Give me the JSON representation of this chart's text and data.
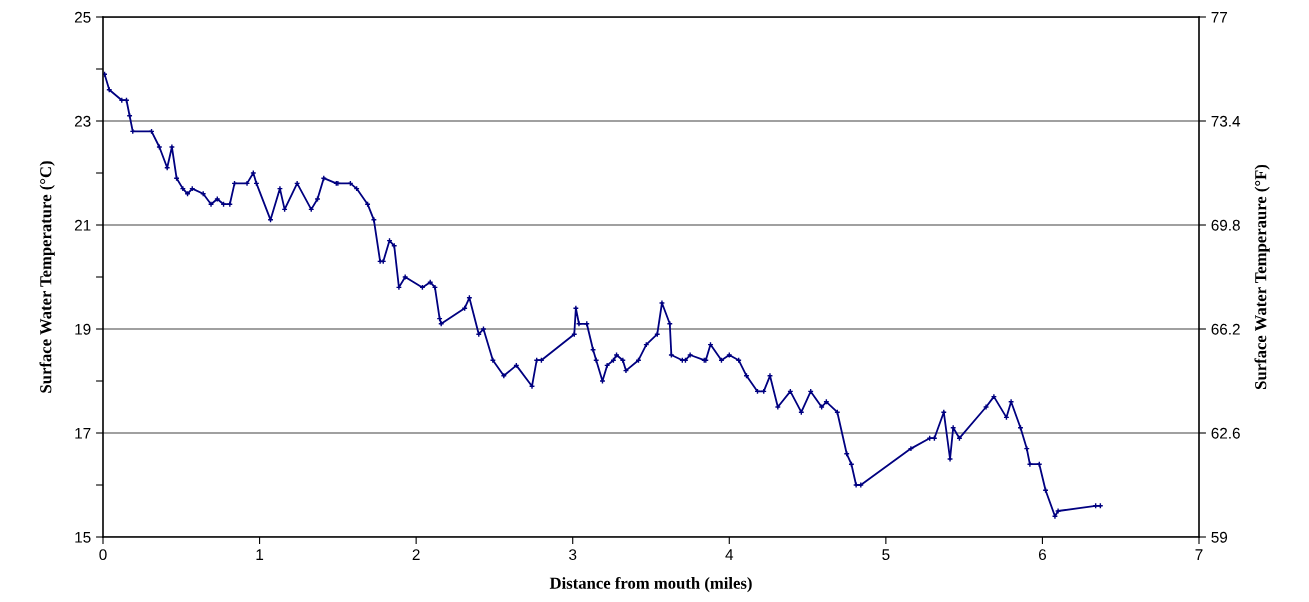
{
  "chart_data": {
    "type": "line",
    "xlabel": "Distance from mouth (miles)",
    "ylabel": "Surface Water Temperature (°C)",
    "y2label": "Surface Water Temperaure (°F)",
    "x": [
      0.01,
      0.04,
      0.12,
      0.15,
      0.17,
      0.19,
      0.31,
      0.36,
      0.41,
      0.44,
      0.47,
      0.51,
      0.54,
      0.57,
      0.64,
      0.69,
      0.73,
      0.77,
      0.81,
      0.84,
      0.92,
      0.96,
      0.98,
      1.07,
      1.13,
      1.16,
      1.24,
      1.33,
      1.37,
      1.41,
      1.49,
      1.5,
      1.58,
      1.62,
      1.69,
      1.73,
      1.77,
      1.79,
      1.83,
      1.86,
      1.89,
      1.93,
      2.04,
      2.09,
      2.12,
      2.15,
      2.16,
      2.31,
      2.34,
      2.4,
      2.43,
      2.49,
      2.56,
      2.64,
      2.74,
      2.77,
      2.8,
      3.01,
      3.02,
      3.04,
      3.09,
      3.13,
      3.15,
      3.19,
      3.22,
      3.26,
      3.28,
      3.32,
      3.34,
      3.42,
      3.47,
      3.54,
      3.57,
      3.62,
      3.63,
      3.7,
      3.72,
      3.75,
      3.84,
      3.85,
      3.88,
      3.95,
      4.0,
      4.06,
      4.11,
      4.18,
      4.22,
      4.26,
      4.31,
      4.39,
      4.46,
      4.52,
      4.59,
      4.62,
      4.69,
      4.75,
      4.78,
      4.81,
      4.84,
      5.16,
      5.28,
      5.31,
      5.37,
      5.41,
      5.43,
      5.47,
      5.64,
      5.69,
      5.77,
      5.8,
      5.86,
      5.9,
      5.92,
      5.98,
      6.02,
      6.08,
      6.1,
      6.34,
      6.37
    ],
    "series": [
      {
        "color": "#000080",
        "values": [
          23.9,
          23.6,
          23.4,
          23.4,
          23.1,
          22.8,
          22.8,
          22.5,
          22.1,
          22.5,
          21.9,
          21.7,
          21.6,
          21.7,
          21.6,
          21.4,
          21.5,
          21.4,
          21.4,
          21.8,
          21.8,
          22.0,
          21.8,
          21.1,
          21.7,
          21.3,
          21.8,
          21.3,
          21.5,
          21.9,
          21.8,
          21.8,
          21.8,
          21.7,
          21.4,
          21.1,
          20.3,
          20.3,
          20.7,
          20.6,
          19.8,
          20.0,
          19.8,
          19.9,
          19.8,
          19.2,
          19.1,
          19.4,
          19.6,
          18.9,
          19.0,
          18.4,
          18.1,
          18.3,
          17.9,
          18.4,
          18.4,
          18.9,
          19.4,
          19.1,
          19.1,
          18.6,
          18.4,
          18.0,
          18.3,
          18.4,
          18.5,
          18.4,
          18.2,
          18.4,
          18.7,
          18.9,
          19.5,
          19.1,
          18.5,
          18.4,
          18.4,
          18.5,
          18.4,
          18.4,
          18.7,
          18.4,
          18.5,
          18.4,
          18.1,
          17.8,
          17.8,
          18.1,
          17.5,
          17.8,
          17.4,
          17.8,
          17.5,
          17.6,
          17.4,
          16.6,
          16.4,
          16.0,
          16.0,
          16.7,
          16.9,
          16.9,
          17.4,
          16.5,
          17.1,
          16.9,
          17.5,
          17.7,
          17.3,
          17.6,
          17.1,
          16.7,
          16.4,
          16.4,
          15.9,
          15.4,
          15.5,
          15.6,
          15.6
        ]
      }
    ],
    "xlim": [
      0,
      7
    ],
    "xticks": [
      0,
      1,
      2,
      3,
      4,
      5,
      6,
      7
    ],
    "ylim": [
      15,
      25
    ],
    "yticks": [
      15,
      {
        "value": 16,
        "label": null
      },
      17,
      {
        "value": 18,
        "label": null
      },
      19,
      {
        "value": 20,
        "label": null
      },
      21,
      {
        "value": 22,
        "label": null
      },
      23,
      {
        "value": 24,
        "label": null
      },
      25
    ],
    "y2lim": [
      59,
      77
    ],
    "y2ticks": [
      59,
      {
        "value": 62.6,
        "label": "62.6"
      },
      {
        "value": 66.2,
        "label": "66.2"
      },
      {
        "value": 69.8,
        "label": "69.8"
      },
      {
        "value": 73.4,
        "label": "73.4"
      },
      77
    ],
    "grid": "y",
    "marker": "cross",
    "line_style": "solid"
  }
}
